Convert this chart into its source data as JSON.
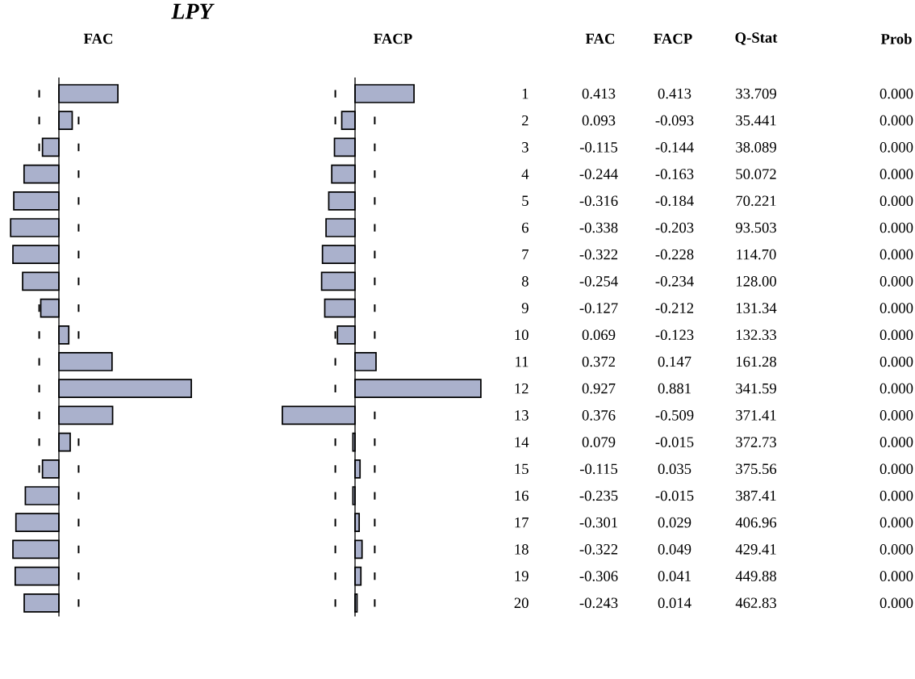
{
  "chart_data": [
    {
      "type": "bar",
      "title": "LPY",
      "subtitle": "FAC",
      "orientation": "horizontal",
      "color": "#aab1cc",
      "data_labels": true,
      "tick_labels": false,
      "categories": [
        "1",
        "2",
        "3",
        "4",
        "5",
        "6",
        "7",
        "8",
        "9",
        "10",
        "11",
        "12",
        "13",
        "14",
        "15",
        "16",
        "17",
        "18",
        "19",
        "20"
      ],
      "values": [
        0.413,
        0.093,
        -0.115,
        -0.244,
        -0.316,
        -0.338,
        -0.322,
        -0.254,
        -0.127,
        0.069,
        0.372,
        0.927,
        0.376,
        0.079,
        -0.115,
        -0.235,
        -0.301,
        -0.322,
        -0.306,
        -0.243
      ],
      "ref_lines": [
        {
          "axis": "x",
          "value": -0.138,
          "line_style": "dashed",
          "color": "#000000"
        },
        {
          "axis": "x",
          "value": 0.138,
          "line_style": "dashed",
          "color": "#000000"
        }
      ]
    },
    {
      "type": "bar",
      "title": "FACP",
      "orientation": "horizontal",
      "color": "#aab1cc",
      "data_labels": true,
      "categories": [
        "1",
        "2",
        "3",
        "4",
        "5",
        "6",
        "7",
        "8",
        "9",
        "10",
        "11",
        "12",
        "13",
        "14",
        "15",
        "16",
        "17",
        "18",
        "19",
        "20"
      ],
      "values": [
        0.413,
        -0.093,
        -0.144,
        -0.163,
        -0.184,
        -0.203,
        -0.228,
        -0.234,
        -0.212,
        -0.123,
        0.147,
        0.881,
        -0.509,
        -0.015,
        0.035,
        -0.015,
        0.029,
        0.049,
        0.041,
        0.014
      ],
      "ref_lines": [
        {
          "axis": "x",
          "value": -0.138,
          "line_style": "dashed",
          "color": "#000000"
        },
        {
          "axis": "x",
          "value": 0.138,
          "line_style": "dashed",
          "color": "#000000"
        }
      ]
    },
    {
      "type": "other",
      "annotations": [
        "FAC",
        "FACP",
        "Q-Stat",
        "Prob",
        "33.709",
        "0.000",
        "35.441",
        "0.000",
        "38.089",
        "0.000",
        "50.072",
        "0.000",
        "70.221",
        "0.000",
        "93.503",
        "0.000",
        "114.70",
        "0.000",
        "128.00",
        "0.000",
        "131.34",
        "0.000",
        "132.33",
        "0.000",
        "161.28",
        "0.000",
        "341.59",
        "0.000",
        "371.41",
        "0.000",
        "372.73",
        "0.000",
        "375.56",
        "0.000",
        "387.41",
        "0.000",
        "406.96",
        "0.000",
        "429.41",
        "0.000",
        "449.88",
        "0.000",
        "462.83",
        "0.000"
      ]
    }
  ]
}
